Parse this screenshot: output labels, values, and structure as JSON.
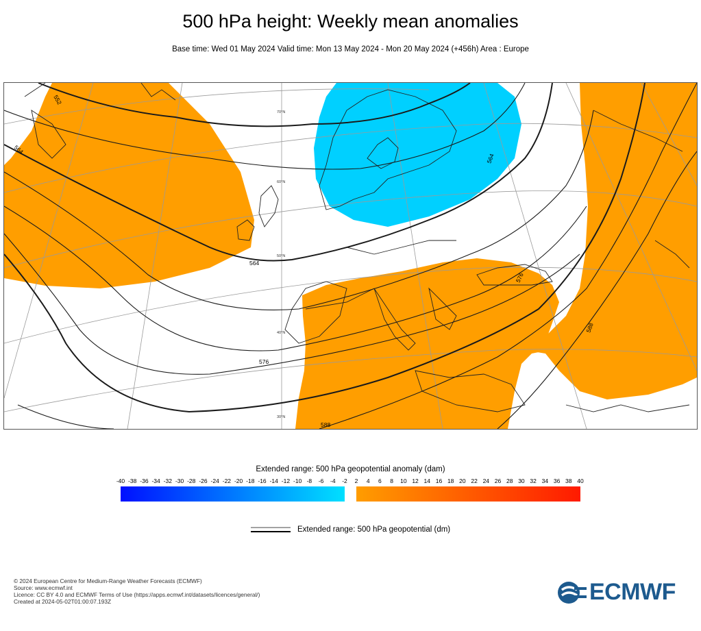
{
  "title": "500 hPa height: Weekly mean anomalies",
  "subtitle": "Base time: Wed 01 May 2024 Valid time: Mon 13 May 2024 - Mon 20 May 2024 (+456h) Area : Europe",
  "map": {
    "contour_labels": [
      "552",
      "564",
      "564",
      "564",
      "576",
      "576",
      "588",
      "588"
    ],
    "latitude_labels": [
      "70°N",
      "60°N",
      "50°N",
      "40°N",
      "30°N"
    ],
    "anomaly_colors": {
      "negative": "#00d0ff",
      "positive": "#ff9e00"
    }
  },
  "legend": {
    "title": "Extended range: 500 hPa geopotential anomaly (dam)",
    "scale_labels": [
      "-40",
      "-38",
      "-36",
      "-34",
      "-32",
      "-30",
      "-28",
      "-26",
      "-24",
      "-22",
      "-20",
      "-18",
      "-16",
      "-14",
      "-12",
      "-10",
      "-8",
      "-6",
      "-4",
      "-2",
      "2",
      "4",
      "6",
      "8",
      "10",
      "12",
      "14",
      "16",
      "18",
      "20",
      "22",
      "24",
      "26",
      "28",
      "30",
      "32",
      "34",
      "36",
      "38",
      "40"
    ],
    "negative_gradient": [
      "#0010ff",
      "#00e0ff"
    ],
    "positive_gradient": [
      "#ff9d00",
      "#ff1a00"
    ],
    "contour_label": "Extended range: 500 hPa geopotential (dm)"
  },
  "footer": {
    "lines": [
      "© 2024 European Centre for Medium-Range Weather Forecasts (ECMWF)",
      "Source: www.ecmwf.int",
      "Licence: CC BY 4.0 and ECMWF Terms of Use (https://apps.ecmwf.int/datasets/licences/general/)",
      "Created at 2024-05-02T01:00:07.193Z"
    ]
  },
  "logo": {
    "text": "ECMWF",
    "color": "#1d5a8e"
  }
}
